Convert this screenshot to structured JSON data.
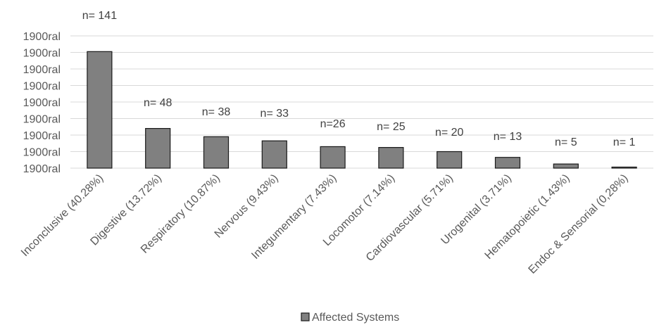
{
  "chart_data": {
    "type": "bar",
    "title": "",
    "xlabel": "",
    "ylabel": "",
    "categories": [
      "Inconclusive  (40.28%)",
      "Digestive (13.72%)",
      "Respiratory (10.87%)",
      "Nervous (9.43%)",
      "Integumentary (7.43%)",
      "Locomotor (7.14%)",
      "Cardiovascular (5.71%)",
      "Urogenital (3.71%)",
      "Hematopoietic (1.43%)",
      "Endoc & Sensorial  (0,28%)"
    ],
    "series": [
      {
        "name": "Affected Systems",
        "values": [
          141,
          48,
          38,
          33,
          26,
          25,
          20,
          13,
          5,
          1
        ],
        "labels": [
          "n= 141",
          "n= 48",
          "n= 38",
          "n= 33",
          "n=26",
          "n= 25",
          "n= 20",
          "n= 13",
          "n= 5",
          "n= 1"
        ]
      }
    ],
    "y_tick_labels": [
      "1900ral",
      "1900ral",
      "1900ral",
      "1900ral",
      "1900ral",
      "1900ral",
      "1900ral",
      "1900ral",
      "1900ral"
    ],
    "ylim": [
      0,
      160
    ],
    "y_tick_step": 20,
    "grid": true,
    "legend": "bottom",
    "colors": {
      "bar": "#808080",
      "bar_edge": "#1a1a1a",
      "grid": "#d9d9d9",
      "text": "#595959"
    }
  }
}
